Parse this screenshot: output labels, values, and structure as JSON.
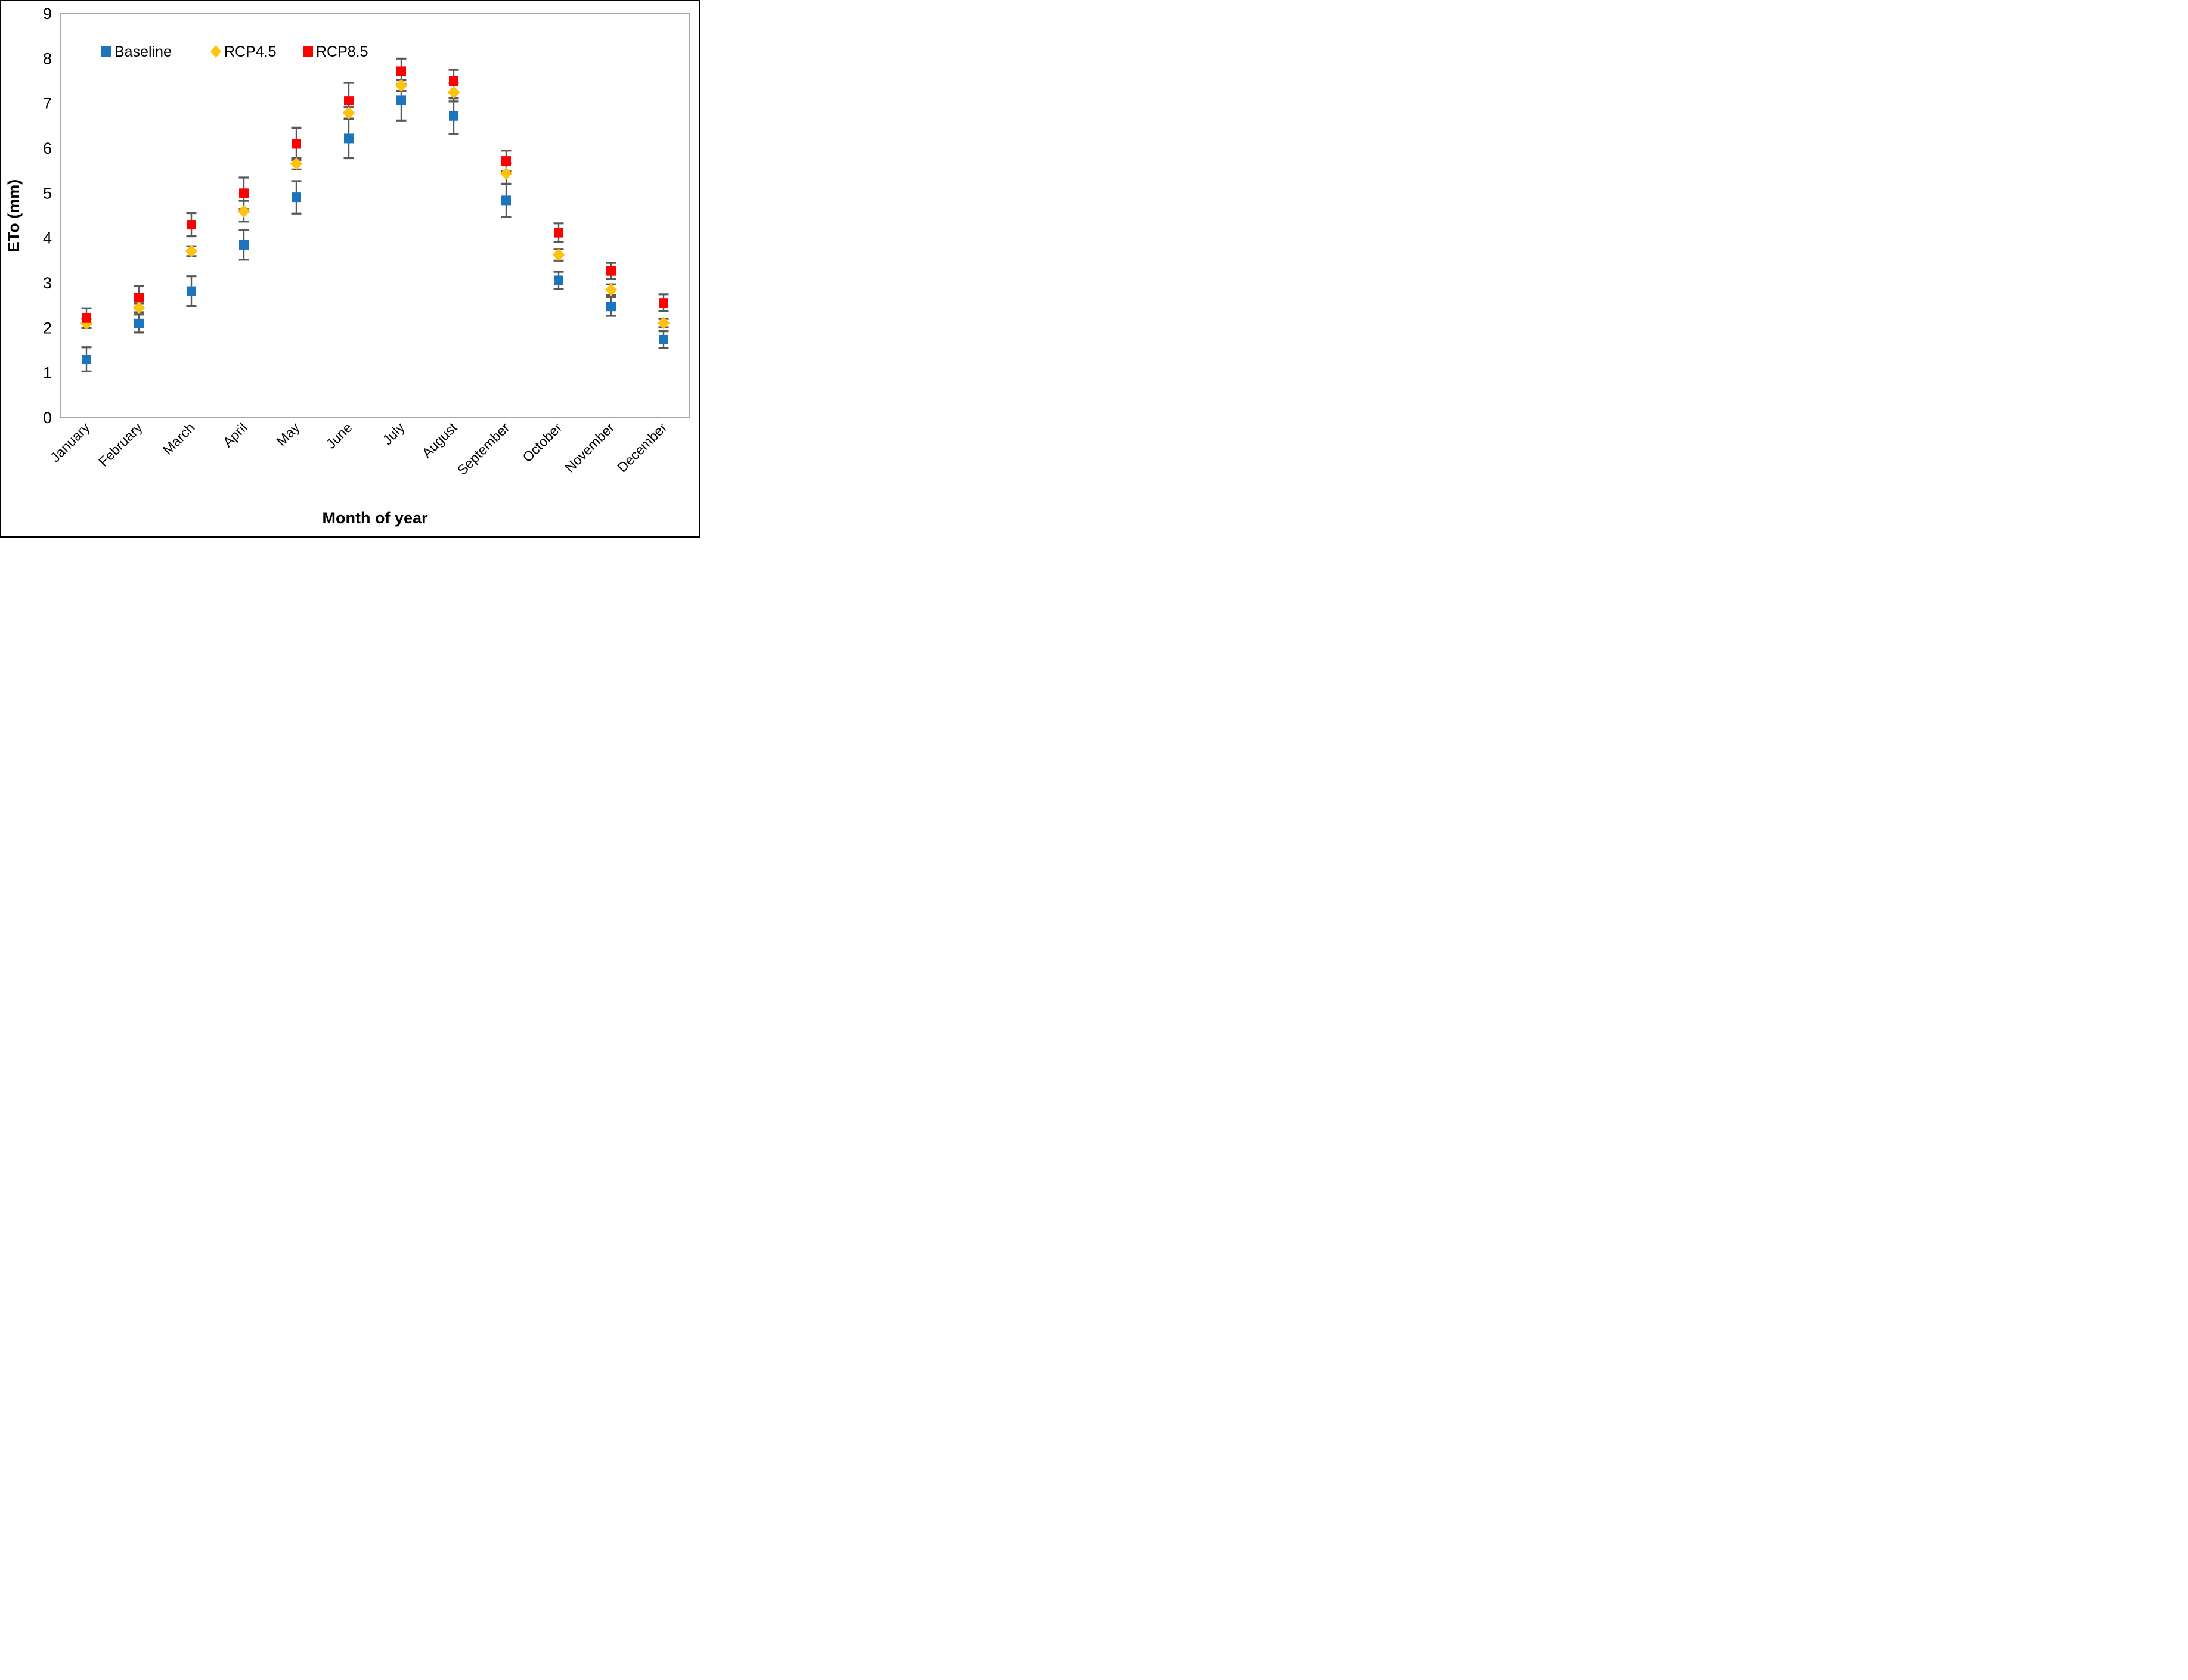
{
  "figure": {
    "background": "#ffffff",
    "plot_border_color": "#a8a8a8",
    "error_bar_color": "#595959",
    "legend": {
      "position": "top-left-inside",
      "items": [
        {
          "label": "Baseline",
          "marker": "square",
          "color": "#1b75be"
        },
        {
          "label": "RCP4.5",
          "marker": "diamond",
          "color": "#ffc20d"
        },
        {
          "label": "RCP8.5",
          "marker": "square",
          "color": "#ff0000"
        }
      ]
    }
  },
  "chart_data": {
    "type": "scatter",
    "title": "",
    "xlabel": "Month of year",
    "ylabel": "ETo (mm)",
    "ylim": [
      0,
      9
    ],
    "yticks": [
      0,
      1,
      2,
      3,
      4,
      5,
      6,
      7,
      8,
      9
    ],
    "grid": false,
    "x_tick_rotation_deg": -45,
    "categories": [
      "January",
      "February",
      "March",
      "April",
      "May",
      "June",
      "July",
      "August",
      "September",
      "October",
      "November",
      "December"
    ],
    "series": [
      {
        "name": "Baseline",
        "marker": "square",
        "color": "#1b75be",
        "values": [
          1.3,
          2.1,
          2.82,
          3.85,
          4.91,
          6.22,
          7.07,
          6.72,
          4.84,
          3.06,
          2.48,
          1.74
        ],
        "errors": [
          0.27,
          0.2,
          0.33,
          0.33,
          0.36,
          0.44,
          0.45,
          0.4,
          0.37,
          0.19,
          0.21,
          0.19
        ]
      },
      {
        "name": "RCP4.5",
        "marker": "diamond",
        "color": "#ffc20d",
        "values": [
          2.1,
          2.45,
          3.71,
          4.6,
          5.66,
          6.79,
          7.4,
          7.25,
          5.44,
          3.63,
          2.85,
          2.11
        ],
        "errors": [
          0.1,
          0.1,
          0.11,
          0.23,
          0.13,
          0.13,
          0.12,
          0.2,
          0.23,
          0.13,
          0.12,
          0.09
        ]
      },
      {
        "name": "RCP8.5",
        "marker": "square",
        "color": "#ff0000",
        "values": [
          2.22,
          2.68,
          4.3,
          5.0,
          6.1,
          7.06,
          7.72,
          7.5,
          5.72,
          4.12,
          3.27,
          2.56
        ],
        "errors": [
          0.22,
          0.25,
          0.26,
          0.35,
          0.36,
          0.4,
          0.28,
          0.25,
          0.23,
          0.21,
          0.18,
          0.19
        ]
      }
    ]
  }
}
